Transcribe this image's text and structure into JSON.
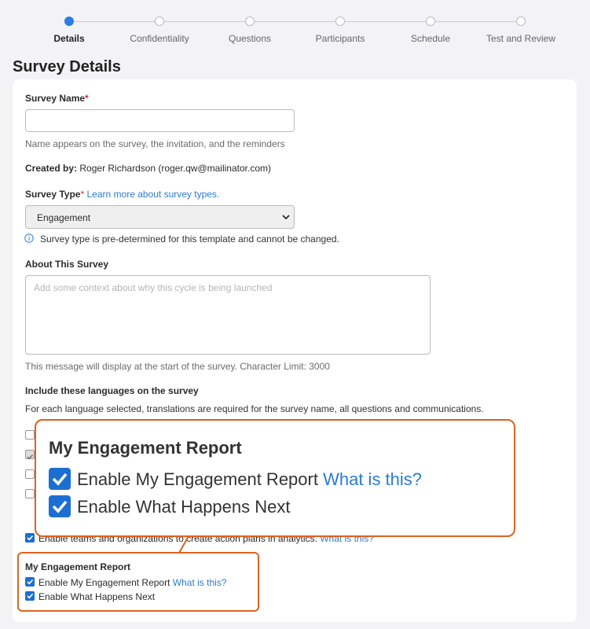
{
  "stepper": {
    "steps": [
      {
        "label": "Details"
      },
      {
        "label": "Confidentiality"
      },
      {
        "label": "Questions"
      },
      {
        "label": "Participants"
      },
      {
        "label": "Schedule"
      },
      {
        "label": "Test and Review"
      }
    ]
  },
  "page": {
    "title": "Survey Details"
  },
  "form": {
    "survey_name": {
      "label": "Survey Name",
      "required": "*",
      "help": "Name appears on the survey, the invitation, and the reminders"
    },
    "created_by": {
      "label": "Created by:",
      "value": "Roger Richardson (roger.qw@mailinator.com)"
    },
    "survey_type": {
      "label": "Survey Type",
      "required": "*",
      "link": "Learn more about survey types.",
      "selected": "Engagement",
      "note": "Survey type is pre-determined for this template and cannot be changed."
    },
    "about": {
      "label": "About This Survey",
      "placeholder": "Add some context about why this cycle is being launched",
      "help": "This message will display at the start of the survey. Character Limit: 3000"
    },
    "languages": {
      "label": "Include these languages on the survey",
      "help": "For each language selected, translations are required for the survey name, all questions and communications."
    },
    "action_plans": {
      "option": "Enable teams and organizations to create action plans in analytics.",
      "link": "What is this?"
    },
    "my_engagement_report": {
      "heading": "My Engagement Report",
      "options": [
        {
          "label": "Enable My Engagement Report",
          "link": "What is this?"
        },
        {
          "label": "Enable What Happens Next"
        }
      ]
    }
  },
  "callout": {
    "heading": "My Engagement Report",
    "options": [
      {
        "label": "Enable My Engagement Report",
        "link": "What is this?"
      },
      {
        "label": "Enable What Happens Next"
      }
    ]
  }
}
